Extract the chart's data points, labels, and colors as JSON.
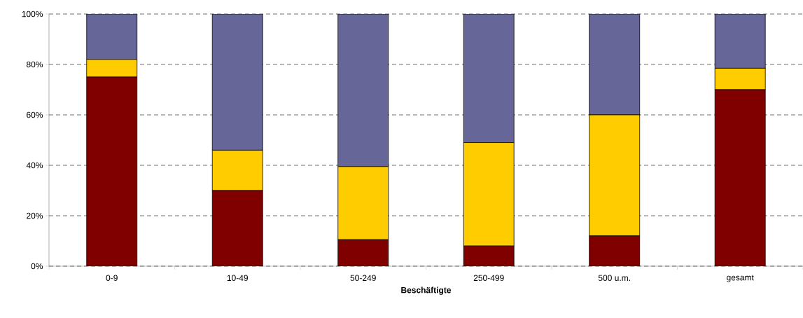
{
  "chart_data": {
    "type": "bar",
    "stacked": true,
    "xlabel": "Beschäftigte",
    "categories": [
      "0-9",
      "10-49",
      "50-249",
      "250-499",
      "500 u.m.",
      "gesamt"
    ],
    "series": [
      {
        "color": "#800000",
        "values": [
          75,
          30,
          10.5,
          8,
          12,
          70
        ]
      },
      {
        "color": "#ffcc00",
        "values": [
          7,
          16,
          29,
          41,
          48,
          8.5
        ]
      },
      {
        "color": "#666699",
        "values": [
          18,
          54,
          60.5,
          51,
          40,
          21.5
        ]
      }
    ],
    "ylim": [
      0,
      100
    ],
    "yticks": [
      {
        "value": 0,
        "label": "0%"
      },
      {
        "value": 20,
        "label": "20%"
      },
      {
        "value": 40,
        "label": "40%"
      },
      {
        "value": 60,
        "label": "60%"
      },
      {
        "value": 80,
        "label": "80%"
      },
      {
        "value": 100,
        "label": "100%"
      }
    ],
    "grid": "y"
  }
}
